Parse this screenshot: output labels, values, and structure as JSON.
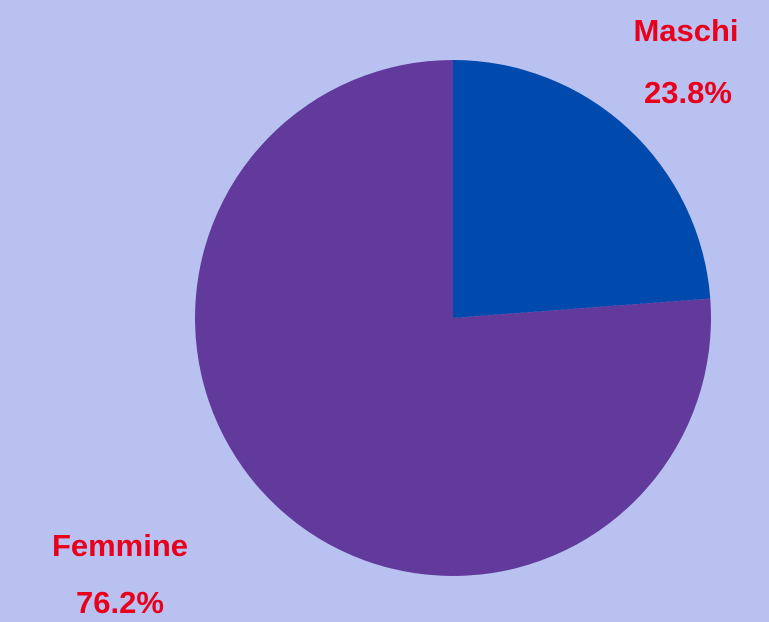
{
  "chart_data": {
    "type": "pie",
    "categories": [
      "Maschi",
      "Femmine"
    ],
    "values": [
      23.8,
      76.2
    ],
    "value_labels": [
      "23.8%",
      "76.2%"
    ],
    "colors": [
      "#004aad",
      "#613a9c"
    ]
  }
}
